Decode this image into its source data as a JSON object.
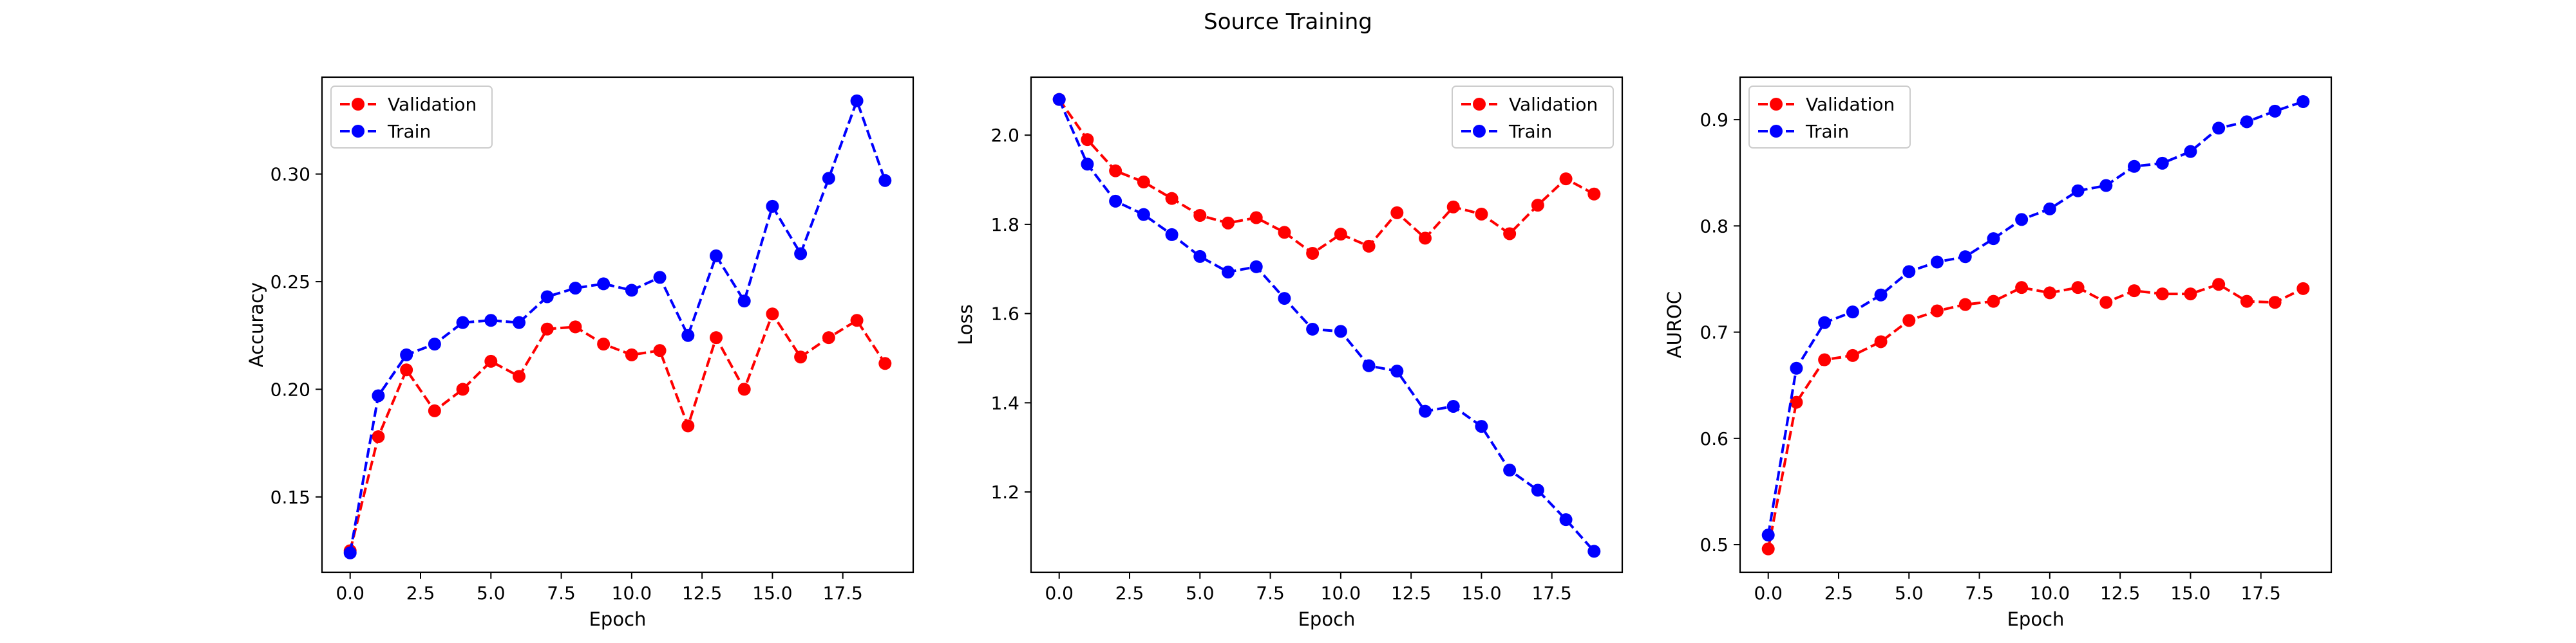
{
  "figure": {
    "title": "Source Training"
  },
  "chart_data": [
    {
      "type": "line",
      "title": "",
      "xlabel": "Epoch",
      "ylabel": "Accuracy",
      "xlim": [
        -1.0,
        20.0
      ],
      "ylim": [
        0.115,
        0.345
      ],
      "xticks": [
        0.0,
        2.5,
        5.0,
        7.5,
        10.0,
        12.5,
        15.0,
        17.5
      ],
      "xtick_labels": [
        "0.0",
        "2.5",
        "5.0",
        "7.5",
        "10.0",
        "12.5",
        "15.0",
        "17.5"
      ],
      "yticks": [
        0.15,
        0.2,
        0.25,
        0.3
      ],
      "ytick_labels": [
        "0.15",
        "0.20",
        "0.25",
        "0.30"
      ],
      "grid": false,
      "legend": "top-left",
      "x": [
        0,
        1,
        2,
        3,
        4,
        5,
        6,
        7,
        8,
        9,
        10,
        11,
        12,
        13,
        14,
        15,
        16,
        17,
        18,
        19
      ],
      "series": [
        {
          "name": "Validation",
          "color": "#ff0000",
          "values": [
            0.125,
            0.178,
            0.209,
            0.19,
            0.2,
            0.213,
            0.206,
            0.228,
            0.229,
            0.221,
            0.216,
            0.218,
            0.183,
            0.224,
            0.2,
            0.235,
            0.215,
            0.224,
            0.232,
            0.212
          ]
        },
        {
          "name": "Train",
          "color": "#0000ff",
          "values": [
            0.124,
            0.197,
            0.216,
            0.221,
            0.231,
            0.232,
            0.231,
            0.243,
            0.247,
            0.249,
            0.246,
            0.252,
            0.225,
            0.262,
            0.241,
            0.285,
            0.263,
            0.298,
            0.334,
            0.297
          ]
        }
      ]
    },
    {
      "type": "line",
      "title": "",
      "xlabel": "Epoch",
      "ylabel": "Loss",
      "xlim": [
        -1.0,
        20.0
      ],
      "ylim": [
        1.02,
        2.13
      ],
      "xticks": [
        0.0,
        2.5,
        5.0,
        7.5,
        10.0,
        12.5,
        15.0,
        17.5
      ],
      "xtick_labels": [
        "0.0",
        "2.5",
        "5.0",
        "7.5",
        "10.0",
        "12.5",
        "15.0",
        "17.5"
      ],
      "yticks": [
        1.2,
        1.4,
        1.6,
        1.8,
        2.0
      ],
      "ytick_labels": [
        "1.2",
        "1.4",
        "1.6",
        "1.8",
        "2.0"
      ],
      "grid": false,
      "legend": "top-right",
      "x": [
        0,
        1,
        2,
        3,
        4,
        5,
        6,
        7,
        8,
        9,
        10,
        11,
        12,
        13,
        14,
        15,
        16,
        17,
        18,
        19
      ],
      "series": [
        {
          "name": "Validation",
          "color": "#ff0000",
          "values": [
            2.08,
            1.99,
            1.92,
            1.895,
            1.858,
            1.82,
            1.803,
            1.815,
            1.782,
            1.735,
            1.778,
            1.751,
            1.826,
            1.769,
            1.839,
            1.823,
            1.779,
            1.843,
            1.902,
            1.868
          ]
        },
        {
          "name": "Train",
          "color": "#0000ff",
          "values": [
            2.08,
            1.935,
            1.852,
            1.822,
            1.777,
            1.728,
            1.693,
            1.705,
            1.634,
            1.565,
            1.56,
            1.483,
            1.471,
            1.381,
            1.392,
            1.347,
            1.249,
            1.204,
            1.138,
            1.067
          ]
        }
      ]
    },
    {
      "type": "line",
      "title": "",
      "xlabel": "Epoch",
      "ylabel": "AUROC",
      "xlim": [
        -1.0,
        20.0
      ],
      "ylim": [
        0.474,
        0.94
      ],
      "xticks": [
        0.0,
        2.5,
        5.0,
        7.5,
        10.0,
        12.5,
        15.0,
        17.5
      ],
      "xtick_labels": [
        "0.0",
        "2.5",
        "5.0",
        "7.5",
        "10.0",
        "12.5",
        "15.0",
        "17.5"
      ],
      "yticks": [
        0.5,
        0.6,
        0.7,
        0.8,
        0.9
      ],
      "ytick_labels": [
        "0.5",
        "0.6",
        "0.7",
        "0.8",
        "0.9"
      ],
      "grid": false,
      "legend": "top-left",
      "x": [
        0,
        1,
        2,
        3,
        4,
        5,
        6,
        7,
        8,
        9,
        10,
        11,
        12,
        13,
        14,
        15,
        16,
        17,
        18,
        19
      ],
      "series": [
        {
          "name": "Validation",
          "color": "#ff0000",
          "values": [
            0.496,
            0.634,
            0.674,
            0.678,
            0.691,
            0.711,
            0.72,
            0.726,
            0.729,
            0.742,
            0.737,
            0.742,
            0.728,
            0.739,
            0.736,
            0.736,
            0.745,
            0.729,
            0.728,
            0.741
          ]
        },
        {
          "name": "Train",
          "color": "#0000ff",
          "values": [
            0.509,
            0.666,
            0.709,
            0.719,
            0.735,
            0.757,
            0.766,
            0.771,
            0.788,
            0.806,
            0.816,
            0.833,
            0.838,
            0.856,
            0.859,
            0.87,
            0.892,
            0.898,
            0.908,
            0.917
          ]
        }
      ]
    }
  ]
}
